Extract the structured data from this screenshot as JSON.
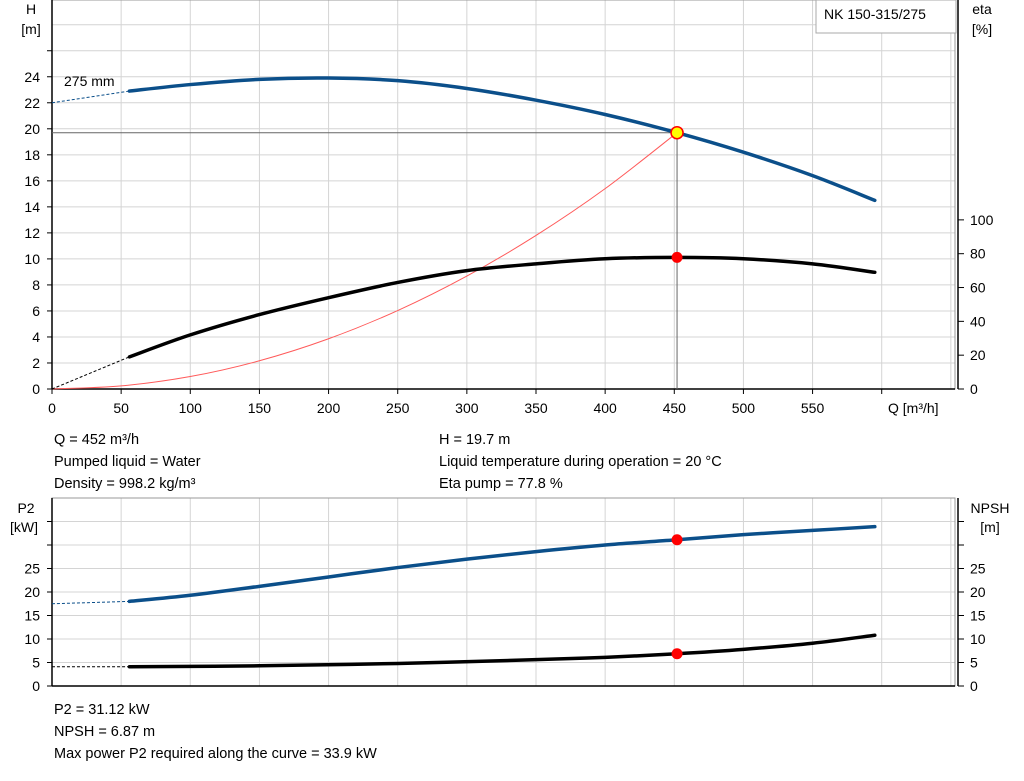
{
  "chart_data": [
    {
      "type": "line",
      "title": "NK 150-315/275",
      "xlabel": "Q [m³/h]",
      "ylabel_left": [
        "H",
        "[m]"
      ],
      "ylabel_right": [
        "eta",
        "[%]"
      ],
      "xlim": [
        0,
        653
      ],
      "ylim_left": [
        0,
        29.9
      ],
      "ylim_right": [
        0,
        230
      ],
      "x_ticks": [
        0,
        50,
        100,
        150,
        200,
        250,
        300,
        350,
        400,
        450,
        500,
        550
      ],
      "y_ticks_left": [
        0,
        2,
        4,
        6,
        8,
        10,
        12,
        14,
        16,
        18,
        20,
        22,
        24
      ],
      "y_ticks_right": [
        0,
        20,
        40,
        60,
        80,
        100
      ],
      "grid": true,
      "curve_label": "275 mm",
      "series": [
        {
          "key": "H",
          "axis": "left",
          "color": "#0b4f8a",
          "x": [
            56,
            100,
            150,
            200,
            250,
            300,
            350,
            400,
            452,
            500,
            550,
            595
          ],
          "values": [
            22.9,
            23.4,
            23.8,
            23.9,
            23.7,
            23.1,
            22.2,
            21.1,
            19.7,
            18.2,
            16.4,
            14.5
          ],
          "extrapolated": {
            "x": [
              0,
              56
            ],
            "values": [
              22.0,
              22.9
            ]
          }
        },
        {
          "key": "eta",
          "axis": "right",
          "color": "#000000",
          "x": [
            56,
            100,
            150,
            200,
            250,
            300,
            350,
            400,
            452,
            500,
            550,
            595
          ],
          "values": [
            19,
            32,
            44,
            54,
            63,
            70,
            74,
            77,
            77.8,
            77,
            74,
            69
          ],
          "extrapolated": {
            "x": [
              0,
              56
            ],
            "values": [
              0,
              19
            ]
          }
        },
        {
          "key": "system",
          "axis": "left",
          "color": "#ff5a5a",
          "x": [
            0,
            50,
            100,
            150,
            200,
            250,
            300,
            350,
            400,
            452
          ],
          "values": [
            0,
            0.24,
            0.96,
            2.17,
            3.86,
            6.03,
            8.68,
            11.8,
            15.4,
            19.7
          ]
        }
      ],
      "duty_point": {
        "Q": 452,
        "H": 19.7,
        "eta": 77.8
      }
    },
    {
      "type": "line",
      "ylabel_left": [
        "P2",
        "[kW]"
      ],
      "ylabel_right": [
        "NPSH",
        "[m]"
      ],
      "xlim": [
        0,
        653
      ],
      "ylim": [
        0,
        40
      ],
      "y_ticks": [
        0,
        5,
        10,
        15,
        20,
        25
      ],
      "grid": true,
      "series": [
        {
          "key": "P2",
          "color": "#0b4f8a",
          "x": [
            56,
            100,
            150,
            200,
            250,
            300,
            350,
            400,
            452,
            500,
            550,
            595
          ],
          "values": [
            18,
            19.3,
            21.2,
            23.2,
            25.2,
            27,
            28.6,
            30,
            31.12,
            32.2,
            33.1,
            33.9
          ],
          "extrapolated": {
            "x": [
              0,
              56
            ],
            "values": [
              17.5,
              18
            ]
          }
        },
        {
          "key": "NPSH",
          "color": "#000000",
          "x": [
            56,
            150,
            250,
            350,
            400,
            452,
            500,
            550,
            595
          ],
          "values": [
            4.1,
            4.3,
            4.8,
            5.6,
            6.1,
            6.87,
            7.8,
            9.1,
            10.8
          ],
          "extrapolated": {
            "x": [
              0,
              56
            ],
            "values": [
              4.1,
              4.1
            ]
          }
        }
      ],
      "duty_point": {
        "Q": 452,
        "P2": 31.12,
        "NPSH": 6.87
      }
    }
  ],
  "info_top": {
    "left": [
      "Q = 452 m³/h",
      "Pumped liquid = Water",
      "Density = 998.2 kg/m³"
    ],
    "right": [
      "H = 19.7 m",
      "Liquid temperature during operation = 20 °C",
      "Eta pump = 77.8 %"
    ]
  },
  "info_bottom": [
    "P2 = 31.12 kW",
    "NPSH = 6.87 m",
    "Max power P2 required along the curve = 33.9 kW"
  ],
  "colors": {
    "head": "#0b4f8a",
    "duty_marker": "#ff0000",
    "duty_fill": "#ffff00",
    "system": "#ff5a5a",
    "grid": "#d4d4d4"
  }
}
